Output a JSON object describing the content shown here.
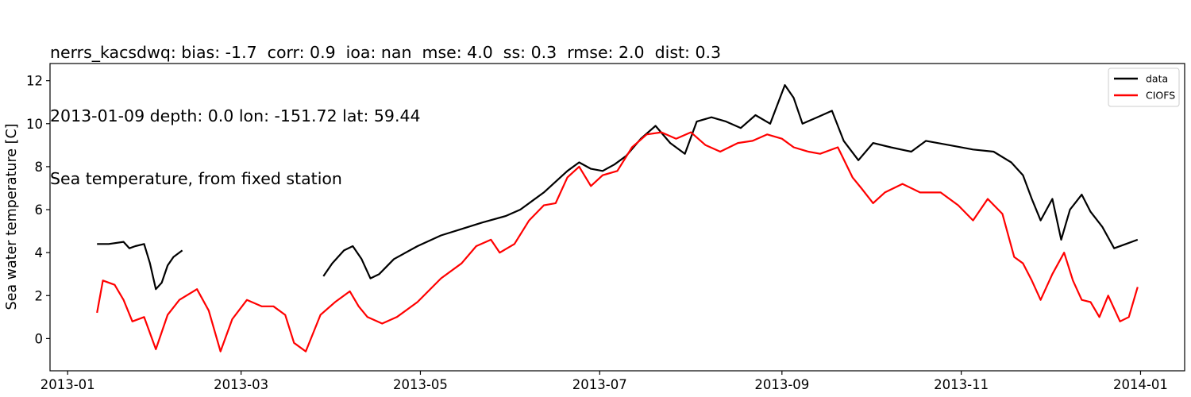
{
  "chart_data": {
    "type": "line",
    "title_lines": [
      "nerrs_kacsdwq: bias: -1.7  corr: 0.9  ioa: nan  mse: 4.0  ss: 0.3  rmse: 2.0  dist: 0.3",
      "2013-01-09 depth: 0.0 lon: -151.72 lat: 59.44",
      "Sea temperature, from fixed station"
    ],
    "xlabel": "",
    "ylabel": "Sea water temperature [C]",
    "xlim": [
      "2012-12-26",
      "2014-01-16"
    ],
    "ylim": [
      -1.5,
      12.8
    ],
    "x_ticks": [
      "2013-01",
      "2013-03",
      "2013-05",
      "2013-07",
      "2013-09",
      "2013-11",
      "2014-01"
    ],
    "y_ticks": [
      0,
      2,
      4,
      6,
      8,
      10,
      12
    ],
    "legend_position": "upper right",
    "grid": false,
    "series": [
      {
        "name": "data",
        "color": "#000000",
        "segments": [
          [
            [
              "2013-01-11",
              4.4
            ],
            [
              "2013-01-15",
              4.4
            ],
            [
              "2013-01-20",
              4.5
            ],
            [
              "2013-01-22",
              4.2
            ],
            [
              "2013-01-24",
              4.3
            ],
            [
              "2013-01-27",
              4.4
            ],
            [
              "2013-01-29",
              3.5
            ],
            [
              "2013-01-31",
              2.3
            ],
            [
              "2013-02-02",
              2.6
            ],
            [
              "2013-02-04",
              3.4
            ],
            [
              "2013-02-06",
              3.8
            ],
            [
              "2013-02-09",
              4.1
            ]
          ],
          [
            [
              "2013-03-29",
              2.9
            ],
            [
              "2013-04-01",
              3.5
            ],
            [
              "2013-04-05",
              4.1
            ],
            [
              "2013-04-08",
              4.3
            ],
            [
              "2013-04-11",
              3.7
            ],
            [
              "2013-04-14",
              2.8
            ],
            [
              "2013-04-17",
              3.0
            ],
            [
              "2013-04-22",
              3.7
            ],
            [
              "2013-04-30",
              4.3
            ],
            [
              "2013-05-08",
              4.8
            ],
            [
              "2013-05-15",
              5.1
            ],
            [
              "2013-05-22",
              5.4
            ],
            [
              "2013-05-30",
              5.7
            ],
            [
              "2013-06-04",
              6.0
            ],
            [
              "2013-06-08",
              6.4
            ],
            [
              "2013-06-12",
              6.8
            ],
            [
              "2013-06-16",
              7.3
            ],
            [
              "2013-06-20",
              7.8
            ],
            [
              "2013-06-24",
              8.2
            ],
            [
              "2013-06-28",
              7.9
            ],
            [
              "2013-07-02",
              7.8
            ],
            [
              "2013-07-06",
              8.1
            ],
            [
              "2013-07-10",
              8.5
            ],
            [
              "2013-07-15",
              9.3
            ],
            [
              "2013-07-20",
              9.9
            ],
            [
              "2013-07-25",
              9.1
            ],
            [
              "2013-07-30",
              8.6
            ],
            [
              "2013-08-03",
              10.1
            ],
            [
              "2013-08-08",
              10.3
            ],
            [
              "2013-08-13",
              10.1
            ],
            [
              "2013-08-18",
              9.8
            ],
            [
              "2013-08-23",
              10.4
            ],
            [
              "2013-08-28",
              10.0
            ],
            [
              "2013-09-02",
              11.8
            ],
            [
              "2013-09-05",
              11.2
            ],
            [
              "2013-09-08",
              10.0
            ],
            [
              "2013-09-13",
              10.3
            ],
            [
              "2013-09-18",
              10.6
            ],
            [
              "2013-09-22",
              9.2
            ],
            [
              "2013-09-27",
              8.3
            ],
            [
              "2013-10-02",
              9.1
            ],
            [
              "2013-10-08",
              8.9
            ],
            [
              "2013-10-15",
              8.7
            ],
            [
              "2013-10-20",
              9.2
            ],
            [
              "2013-10-28",
              9.0
            ],
            [
              "2013-11-05",
              8.8
            ],
            [
              "2013-11-12",
              8.7
            ],
            [
              "2013-11-18",
              8.2
            ],
            [
              "2013-11-22",
              7.6
            ],
            [
              "2013-11-25",
              6.5
            ],
            [
              "2013-11-28",
              5.5
            ],
            [
              "2013-12-02",
              6.5
            ],
            [
              "2013-12-05",
              4.6
            ],
            [
              "2013-12-08",
              6.0
            ],
            [
              "2013-12-12",
              6.7
            ],
            [
              "2013-12-15",
              5.9
            ],
            [
              "2013-12-19",
              5.2
            ],
            [
              "2013-12-23",
              4.2
            ],
            [
              "2013-12-27",
              4.4
            ],
            [
              "2013-12-31",
              4.6
            ]
          ]
        ]
      },
      {
        "name": "CIOFS",
        "color": "#ff0000",
        "segments": [
          [
            [
              "2013-01-11",
              1.2
            ],
            [
              "2013-01-13",
              2.7
            ],
            [
              "2013-01-17",
              2.5
            ],
            [
              "2013-01-20",
              1.8
            ],
            [
              "2013-01-23",
              0.8
            ],
            [
              "2013-01-27",
              1.0
            ],
            [
              "2013-01-31",
              -0.5
            ],
            [
              "2013-02-04",
              1.1
            ],
            [
              "2013-02-08",
              1.8
            ],
            [
              "2013-02-14",
              2.3
            ],
            [
              "2013-02-18",
              1.3
            ],
            [
              "2013-02-22",
              -0.6
            ],
            [
              "2013-02-26",
              0.9
            ],
            [
              "2013-03-03",
              1.8
            ],
            [
              "2013-03-08",
              1.5
            ],
            [
              "2013-03-12",
              1.5
            ],
            [
              "2013-03-16",
              1.1
            ],
            [
              "2013-03-19",
              -0.2
            ],
            [
              "2013-03-23",
              -0.6
            ],
            [
              "2013-03-28",
              1.1
            ],
            [
              "2013-04-02",
              1.7
            ],
            [
              "2013-04-07",
              2.2
            ],
            [
              "2013-04-10",
              1.5
            ],
            [
              "2013-04-13",
              1.0
            ],
            [
              "2013-04-18",
              0.7
            ],
            [
              "2013-04-23",
              1.0
            ],
            [
              "2013-04-30",
              1.7
            ],
            [
              "2013-05-08",
              2.8
            ],
            [
              "2013-05-15",
              3.5
            ],
            [
              "2013-05-20",
              4.3
            ],
            [
              "2013-05-25",
              4.6
            ],
            [
              "2013-05-28",
              4.0
            ],
            [
              "2013-06-02",
              4.4
            ],
            [
              "2013-06-07",
              5.5
            ],
            [
              "2013-06-12",
              6.2
            ],
            [
              "2013-06-16",
              6.3
            ],
            [
              "2013-06-20",
              7.5
            ],
            [
              "2013-06-24",
              8.0
            ],
            [
              "2013-06-28",
              7.1
            ],
            [
              "2013-07-02",
              7.6
            ],
            [
              "2013-07-07",
              7.8
            ],
            [
              "2013-07-12",
              8.9
            ],
            [
              "2013-07-17",
              9.5
            ],
            [
              "2013-07-22",
              9.6
            ],
            [
              "2013-07-27",
              9.3
            ],
            [
              "2013-08-01",
              9.6
            ],
            [
              "2013-08-06",
              9.0
            ],
            [
              "2013-08-11",
              8.7
            ],
            [
              "2013-08-17",
              9.1
            ],
            [
              "2013-08-22",
              9.2
            ],
            [
              "2013-08-27",
              9.5
            ],
            [
              "2013-09-01",
              9.3
            ],
            [
              "2013-09-05",
              8.9
            ],
            [
              "2013-09-10",
              8.7
            ],
            [
              "2013-09-14",
              8.6
            ],
            [
              "2013-09-20",
              8.9
            ],
            [
              "2013-09-25",
              7.5
            ],
            [
              "2013-09-28",
              7.0
            ],
            [
              "2013-10-02",
              6.3
            ],
            [
              "2013-10-06",
              6.8
            ],
            [
              "2013-10-12",
              7.2
            ],
            [
              "2013-10-18",
              6.8
            ],
            [
              "2013-10-25",
              6.8
            ],
            [
              "2013-10-31",
              6.2
            ],
            [
              "2013-11-05",
              5.5
            ],
            [
              "2013-11-10",
              6.5
            ],
            [
              "2013-11-15",
              5.8
            ],
            [
              "2013-11-19",
              3.8
            ],
            [
              "2013-11-22",
              3.5
            ],
            [
              "2013-11-25",
              2.7
            ],
            [
              "2013-11-28",
              1.8
            ],
            [
              "2013-12-02",
              3.0
            ],
            [
              "2013-12-06",
              4.0
            ],
            [
              "2013-12-09",
              2.7
            ],
            [
              "2013-12-12",
              1.8
            ],
            [
              "2013-12-15",
              1.7
            ],
            [
              "2013-12-18",
              1.0
            ],
            [
              "2013-12-21",
              2.0
            ],
            [
              "2013-12-25",
              0.8
            ],
            [
              "2013-12-28",
              1.0
            ],
            [
              "2013-12-31",
              2.4
            ]
          ]
        ]
      }
    ]
  }
}
